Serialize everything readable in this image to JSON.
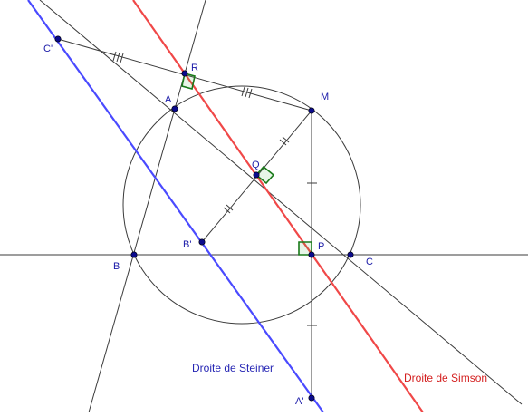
{
  "points": {
    "A": "A",
    "B": "B",
    "C": "C",
    "M": "M",
    "P": "P",
    "Q": "Q",
    "R": "R",
    "A_prime": "A'",
    "B_prime": "B'",
    "C_prime": "C'"
  },
  "lines": {
    "steiner": "Droite de Steiner",
    "simson": "Droite de Simson"
  },
  "colors": {
    "steiner": "#4a4aff",
    "simson": "#f04848",
    "construction": "#3b3b3b",
    "points": "#0b0b8c",
    "right_angle_marks": "#1a7a1a"
  }
}
